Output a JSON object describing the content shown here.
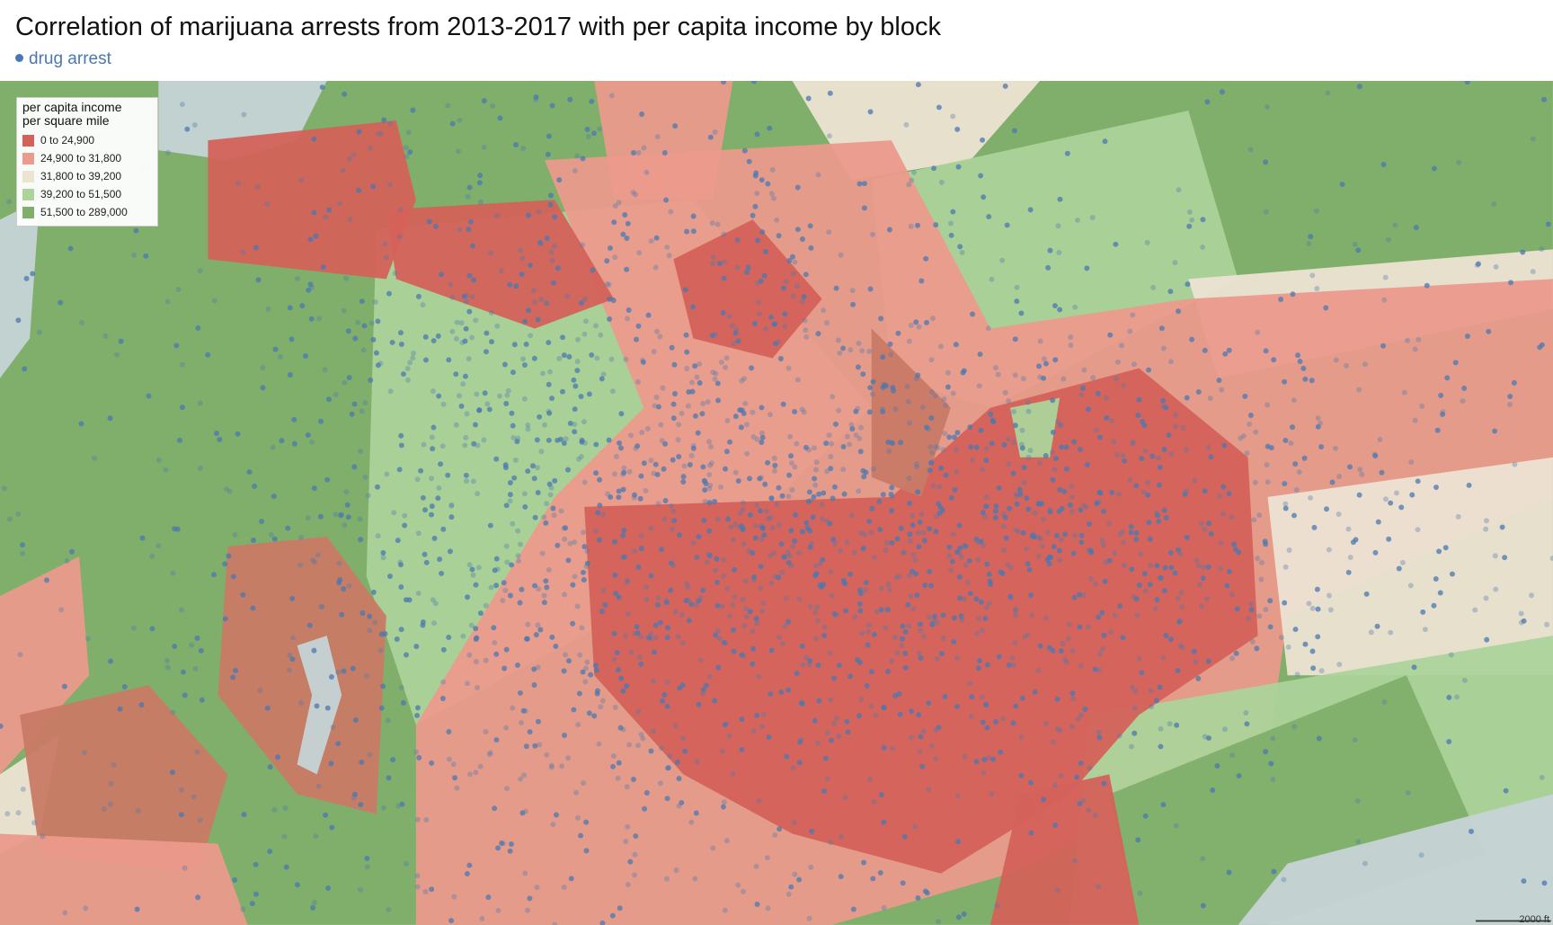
{
  "header": {
    "title": "Correlation of marijuana arrests from 2013-2017 with per capita income by block",
    "legend_label": "drug arrest"
  },
  "legend": {
    "title_lines": [
      "per capita income",
      "per square mile"
    ],
    "items": [
      {
        "label": "0 to 24,900",
        "color": "#d4625a"
      },
      {
        "label": "24,900 to 31,800",
        "color": "#eb9a8c"
      },
      {
        "label": "31,800 to 39,200",
        "color": "#ede3d3"
      },
      {
        "label": "39,200 to 51,500",
        "color": "#acd39a"
      },
      {
        "label": "51,500 to 289,000",
        "color": "#7faf6a"
      }
    ]
  },
  "scale_label": "2000 ft"
}
